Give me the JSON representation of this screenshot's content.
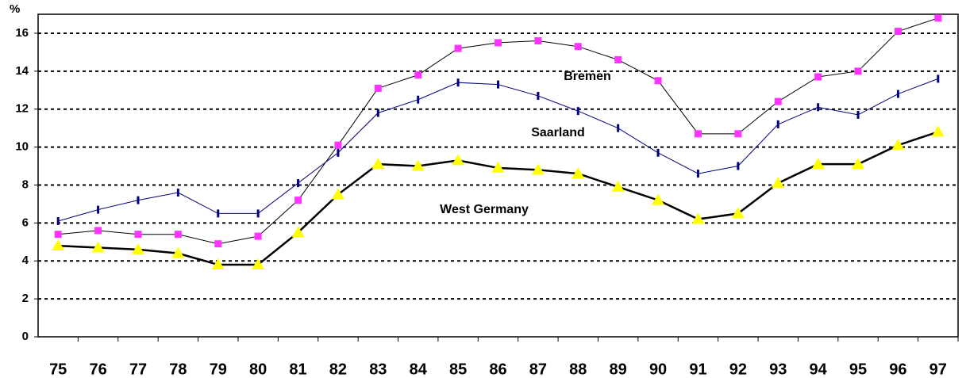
{
  "chart_data": {
    "type": "line",
    "y_label": "%",
    "categories": [
      "75",
      "76",
      "77",
      "78",
      "79",
      "80",
      "81",
      "82",
      "83",
      "84",
      "85",
      "86",
      "87",
      "88",
      "89",
      "90",
      "91",
      "92",
      "93",
      "94",
      "95",
      "96",
      "97"
    ],
    "series": [
      {
        "name": "Bremen",
        "color": "#ff33ff",
        "line_color": "#000000",
        "marker": "square",
        "values": [
          5.4,
          5.6,
          5.4,
          5.4,
          4.9,
          5.3,
          7.2,
          10.1,
          13.1,
          13.8,
          15.2,
          15.5,
          15.6,
          15.3,
          14.6,
          13.5,
          10.7,
          10.7,
          12.4,
          13.7,
          14.0,
          16.1,
          16.8
        ]
      },
      {
        "name": "Saarland",
        "color": "#000080",
        "line_color": "#000080",
        "marker": "dash",
        "values": [
          6.1,
          6.7,
          7.2,
          7.6,
          6.5,
          6.5,
          8.1,
          9.7,
          11.8,
          12.5,
          13.4,
          13.3,
          12.7,
          11.9,
          11.0,
          9.7,
          8.6,
          9.0,
          11.2,
          12.1,
          11.7,
          12.8,
          13.6
        ]
      },
      {
        "name": "West Germany",
        "color": "#ffff00",
        "line_color": "#000000",
        "marker": "triangle",
        "values": [
          4.8,
          4.7,
          4.6,
          4.4,
          3.8,
          3.8,
          5.5,
          7.5,
          9.1,
          9.0,
          9.3,
          8.9,
          8.8,
          8.6,
          7.9,
          7.2,
          6.2,
          6.5,
          8.1,
          9.1,
          9.1,
          10.1,
          10.8
        ]
      }
    ],
    "ylim": [
      0,
      17
    ],
    "yticks": [
      0,
      2,
      4,
      6,
      8,
      10,
      12,
      14,
      16
    ],
    "grid": true
  }
}
